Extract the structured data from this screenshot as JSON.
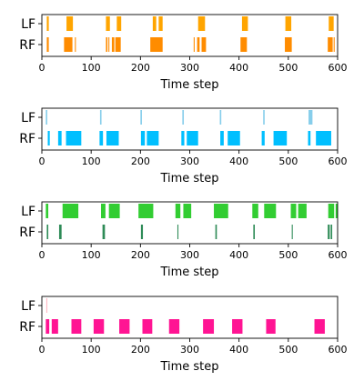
{
  "chart_data": [
    {
      "type": "gantt",
      "xlabel": "Time step",
      "xlim": [
        0,
        600
      ],
      "xticks": [
        0,
        100,
        200,
        300,
        400,
        500,
        600
      ],
      "rows": [
        "LF",
        "RF"
      ],
      "colors": {
        "LF": "#FFA500",
        "RF": "#FF8C00"
      },
      "segments": {
        "LF": [
          [
            10,
            14
          ],
          [
            50,
            63
          ],
          [
            130,
            138
          ],
          [
            152,
            161
          ],
          [
            225,
            232
          ],
          [
            237,
            245
          ],
          [
            317,
            331
          ],
          [
            406,
            418
          ],
          [
            494,
            506
          ],
          [
            582,
            592
          ]
        ],
        "RF": [
          [
            10,
            14
          ],
          [
            45,
            62
          ],
          [
            67,
            69
          ],
          [
            130,
            133
          ],
          [
            135,
            137
          ],
          [
            142,
            147
          ],
          [
            149,
            160
          ],
          [
            220,
            245
          ],
          [
            308,
            310
          ],
          [
            315,
            320
          ],
          [
            324,
            333
          ],
          [
            403,
            416
          ],
          [
            493,
            507
          ],
          [
            580,
            590
          ],
          [
            592,
            594
          ]
        ]
      }
    },
    {
      "type": "gantt",
      "xlabel": "Time step",
      "xlim": [
        0,
        600
      ],
      "xticks": [
        0,
        100,
        200,
        300,
        400,
        500,
        600
      ],
      "rows": [
        "LF",
        "RF"
      ],
      "colors": {
        "LF": "#87CEEB",
        "RF": "#00BFFF"
      },
      "segments": {
        "LF": [
          [
            8,
            11
          ],
          [
            118,
            121
          ],
          [
            200,
            203
          ],
          [
            285,
            288
          ],
          [
            361,
            364
          ],
          [
            449,
            452
          ],
          [
            541,
            549
          ]
        ],
        "RF": [
          [
            12,
            16
          ],
          [
            33,
            40
          ],
          [
            49,
            80
          ],
          [
            117,
            124
          ],
          [
            131,
            156
          ],
          [
            201,
            209
          ],
          [
            213,
            237
          ],
          [
            283,
            289
          ],
          [
            294,
            317
          ],
          [
            362,
            369
          ],
          [
            377,
            402
          ],
          [
            446,
            452
          ],
          [
            470,
            497
          ],
          [
            540,
            545
          ],
          [
            556,
            587
          ]
        ]
      }
    },
    {
      "type": "gantt",
      "xlabel": "Time step",
      "xlim": [
        0,
        600
      ],
      "xticks": [
        0,
        100,
        200,
        300,
        400,
        500,
        600
      ],
      "rows": [
        "LF",
        "RF"
      ],
      "colors": {
        "LF": "#32CD32",
        "RF": "#2E8B57"
      },
      "segments": {
        "LF": [
          [
            8,
            13
          ],
          [
            42,
            74
          ],
          [
            120,
            129
          ],
          [
            136,
            158
          ],
          [
            196,
            226
          ],
          [
            271,
            281
          ],
          [
            287,
            303
          ],
          [
            349,
            378
          ],
          [
            427,
            439
          ],
          [
            451,
            475
          ],
          [
            505,
            516
          ],
          [
            520,
            537
          ],
          [
            581,
            593
          ],
          [
            596,
            600
          ]
        ],
        "RF": [
          [
            10,
            13
          ],
          [
            35,
            40
          ],
          [
            123,
            128
          ],
          [
            201,
            205
          ],
          [
            275,
            277
          ],
          [
            352,
            355
          ],
          [
            429,
            432
          ],
          [
            507,
            509
          ],
          [
            580,
            584
          ],
          [
            586,
            589
          ]
        ]
      }
    },
    {
      "type": "gantt",
      "xlabel": "Time step",
      "xlim": [
        0,
        600
      ],
      "xticks": [
        0,
        100,
        200,
        300,
        400,
        500,
        600
      ],
      "rows": [
        "LF",
        "RF"
      ],
      "colors": {
        "LF": "#FFB6C1",
        "RF": "#FF1493"
      },
      "segments": {
        "LF": [
          [
            9,
            11
          ]
        ],
        "RF": [
          [
            8,
            15
          ],
          [
            20,
            33
          ],
          [
            60,
            80
          ],
          [
            105,
            126
          ],
          [
            157,
            178
          ],
          [
            204,
            224
          ],
          [
            258,
            279
          ],
          [
            327,
            349
          ],
          [
            386,
            407
          ],
          [
            455,
            474
          ],
          [
            553,
            574
          ]
        ]
      }
    }
  ]
}
